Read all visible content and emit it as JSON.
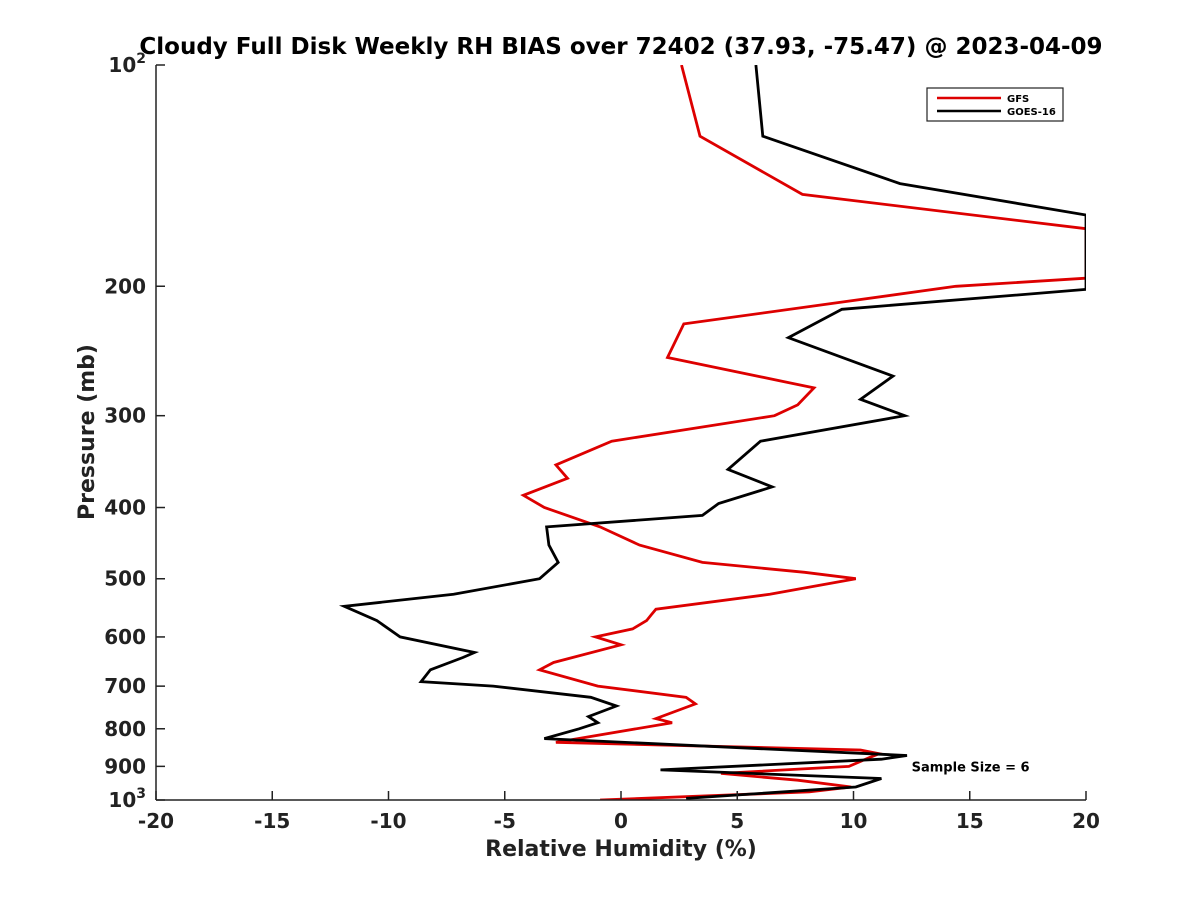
{
  "chart_data": {
    "type": "line",
    "title": "Cloudy Full Disk Weekly RH BIAS over 72402 (37.93, -75.47) @ 2023-04-09",
    "xlabel": "Relative Humidity (%)",
    "ylabel": "Pressure (mb)",
    "xlim": [
      -20,
      20
    ],
    "ylim": [
      100,
      1000
    ],
    "yscale": "log",
    "y_reversed": true,
    "grid": false,
    "legend_position": "top-right",
    "x_ticks": [
      "-20",
      "-15",
      "-10",
      "-5",
      "0",
      "5",
      "10",
      "15",
      "20"
    ],
    "y_ticks": [
      {
        "value": 100,
        "label": "10",
        "exp": "2"
      },
      {
        "value": 200,
        "label": "200",
        "exp": ""
      },
      {
        "value": 300,
        "label": "300",
        "exp": ""
      },
      {
        "value": 400,
        "label": "400",
        "exp": ""
      },
      {
        "value": 500,
        "label": "500",
        "exp": ""
      },
      {
        "value": 600,
        "label": "600",
        "exp": ""
      },
      {
        "value": 700,
        "label": "700",
        "exp": ""
      },
      {
        "value": 800,
        "label": "800",
        "exp": ""
      },
      {
        "value": 900,
        "label": "900",
        "exp": ""
      },
      {
        "value": 1000,
        "label": "10",
        "exp": "3"
      }
    ],
    "series": [
      {
        "name": "GFS",
        "color": "#dd0000",
        "points": [
          [
            2.6,
            100
          ],
          [
            3.4,
            125
          ],
          [
            7.8,
            150
          ],
          [
            20,
            167
          ],
          [
            20,
            195
          ],
          [
            14.4,
            200
          ],
          [
            9.6,
            210
          ],
          [
            2.7,
            225
          ],
          [
            2.0,
            250
          ],
          [
            8.3,
            275
          ],
          [
            7.6,
            290
          ],
          [
            6.6,
            300
          ],
          [
            -0.4,
            325
          ],
          [
            -2.8,
            350
          ],
          [
            -2.3,
            365
          ],
          [
            -4.2,
            385
          ],
          [
            -3.3,
            400
          ],
          [
            -0.9,
            425
          ],
          [
            0.8,
            450
          ],
          [
            3.5,
            475
          ],
          [
            7.9,
            490
          ],
          [
            10.1,
            500
          ],
          [
            6.4,
            525
          ],
          [
            1.5,
            550
          ],
          [
            1.3,
            560
          ],
          [
            1.1,
            570
          ],
          [
            0.5,
            585
          ],
          [
            -1.1,
            600
          ],
          [
            0.0,
            615
          ],
          [
            -2.9,
            650
          ],
          [
            -3.5,
            665
          ],
          [
            -1.0,
            700
          ],
          [
            2.8,
            725
          ],
          [
            3.2,
            740
          ],
          [
            1.5,
            775
          ],
          [
            2.2,
            785
          ],
          [
            -2.8,
            835
          ],
          [
            10.3,
            855
          ],
          [
            11.1,
            865
          ],
          [
            10.7,
            875
          ],
          [
            9.8,
            900
          ],
          [
            4.3,
            920
          ],
          [
            7.6,
            940
          ],
          [
            9.9,
            960
          ],
          [
            8.1,
            975
          ],
          [
            -0.9,
            1000
          ]
        ]
      },
      {
        "name": "GOES-16",
        "color": "#000000",
        "points": [
          [
            5.8,
            100
          ],
          [
            6.1,
            125
          ],
          [
            12.0,
            145
          ],
          [
            20,
            160
          ],
          [
            20,
            202
          ],
          [
            9.5,
            215
          ],
          [
            7.2,
            235
          ],
          [
            11.7,
            265
          ],
          [
            10.3,
            285
          ],
          [
            12.2,
            300
          ],
          [
            6.0,
            325
          ],
          [
            4.6,
            355
          ],
          [
            6.5,
            375
          ],
          [
            4.2,
            395
          ],
          [
            3.5,
            410
          ],
          [
            -3.2,
            425
          ],
          [
            -3.1,
            450
          ],
          [
            -2.7,
            475
          ],
          [
            -3.5,
            500
          ],
          [
            -7.2,
            525
          ],
          [
            -11.9,
            545
          ],
          [
            -10.5,
            570
          ],
          [
            -9.5,
            600
          ],
          [
            -6.3,
            630
          ],
          [
            -6.8,
            640
          ],
          [
            -8.2,
            665
          ],
          [
            -8.6,
            690
          ],
          [
            -5.5,
            700
          ],
          [
            -1.3,
            725
          ],
          [
            -0.2,
            745
          ],
          [
            -1.4,
            770
          ],
          [
            -1.0,
            785
          ],
          [
            -1.8,
            800
          ],
          [
            -3.3,
            825
          ],
          [
            12.3,
            870
          ],
          [
            11.2,
            880
          ],
          [
            1.7,
            910
          ],
          [
            11.2,
            935
          ],
          [
            10.1,
            960
          ],
          [
            2.8,
            995
          ]
        ]
      }
    ],
    "annotations": [
      {
        "text": "Sample Size = 6",
        "x": 12.5,
        "y": 900
      }
    ]
  }
}
